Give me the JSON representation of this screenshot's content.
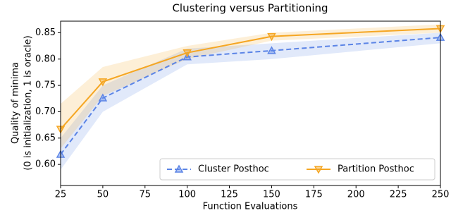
{
  "chart_data": {
    "type": "line",
    "title": "Clustering versus Partitioning",
    "x_label": "Function Evaluations",
    "y_label": [
      "Quality of minima",
      "(0 is initialization, 1 is oracle)"
    ],
    "x": [
      25,
      50,
      100,
      150,
      250
    ],
    "xlim": [
      25,
      250
    ],
    "xticks": [
      25,
      50,
      75,
      100,
      125,
      150,
      175,
      200,
      225,
      250
    ],
    "ylim": [
      0.56,
      0.872
    ],
    "yticks": [
      {
        "value": 0.6,
        "label": "0.60"
      },
      {
        "value": 0.65,
        "label": "0.65"
      },
      {
        "value": 0.7,
        "label": "0.70"
      },
      {
        "value": 0.75,
        "label": "0.75"
      },
      {
        "value": 0.8,
        "label": "0.80"
      },
      {
        "value": 0.85,
        "label": "0.85"
      }
    ],
    "legend": "lower right",
    "series": [
      {
        "name": "Cluster Posthoc",
        "color": "#5b84e6",
        "dash": true,
        "marker": "triangle-up",
        "values": [
          0.619,
          0.726,
          0.804,
          0.816,
          0.841
        ],
        "lower": [
          0.59,
          0.7,
          0.79,
          0.8,
          0.83
        ],
        "upper": [
          0.65,
          0.75,
          0.82,
          0.83,
          0.85
        ]
      },
      {
        "name": "Partition Posthoc",
        "color": "#f5a623",
        "dash": false,
        "marker": "triangle-down",
        "values": [
          0.667,
          0.757,
          0.812,
          0.843,
          0.858
        ],
        "lower": [
          0.63,
          0.73,
          0.8,
          0.835,
          0.85
        ],
        "upper": [
          0.715,
          0.785,
          0.825,
          0.85,
          0.866
        ]
      }
    ]
  }
}
